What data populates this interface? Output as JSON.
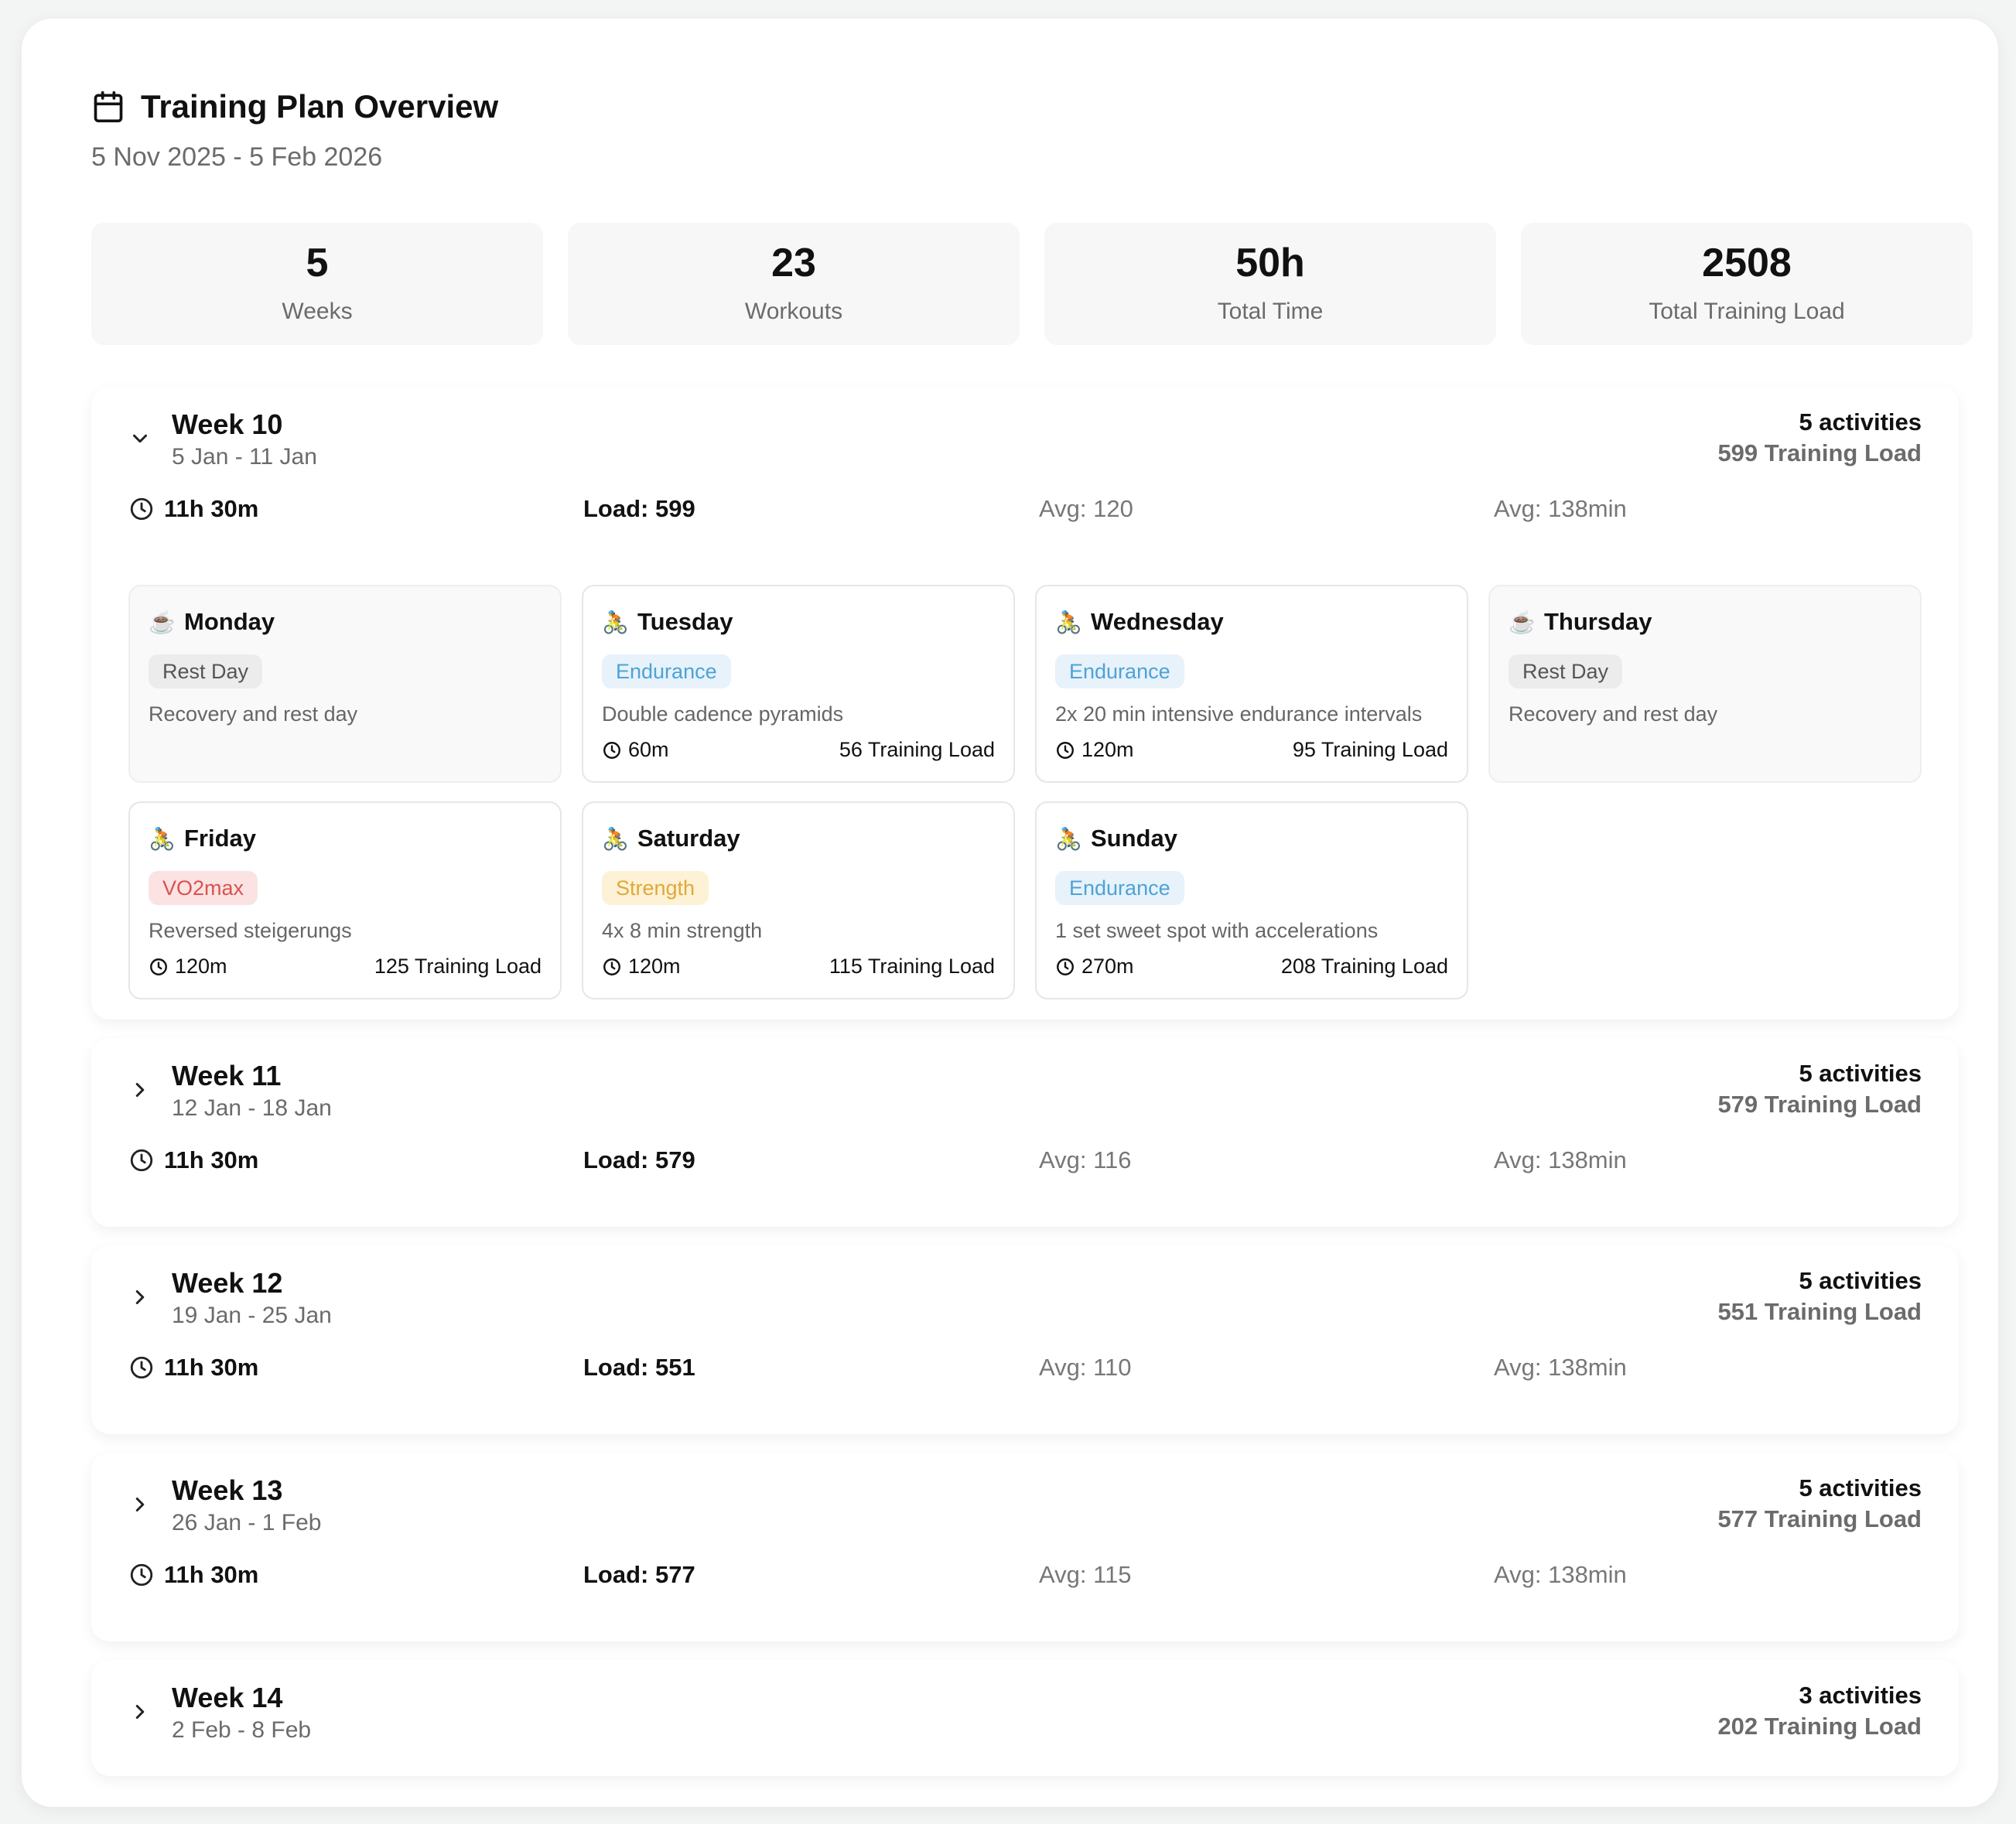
{
  "header": {
    "title": "Training Plan Overview",
    "date_range": "5 Nov 2025 - 5 Feb 2026"
  },
  "stats": [
    {
      "value": "5",
      "label": "Weeks"
    },
    {
      "value": "23",
      "label": "Workouts"
    },
    {
      "value": "50h",
      "label": "Total Time"
    },
    {
      "value": "2508",
      "label": "Total Training Load"
    }
  ],
  "weeks": [
    {
      "title": "Week 10",
      "dates": "5 Jan - 11 Jan",
      "expanded": true,
      "activities": "5 activities",
      "load_summary": "599 Training Load",
      "time": "11h 30m",
      "load": "Load: 599",
      "avg_load": "Avg: 120",
      "avg_time": "Avg: 138min",
      "days": [
        {
          "name": "Monday",
          "icon": "coffee-icon",
          "tag": "Rest Day",
          "desc": "Recovery and rest day"
        },
        {
          "name": "Tuesday",
          "icon": "bike-icon",
          "tag": "Endurance",
          "desc": "Double cadence pyramids",
          "duration": "60m",
          "load": "56 Training Load"
        },
        {
          "name": "Wednesday",
          "icon": "bike-icon",
          "tag": "Endurance",
          "desc": "2x 20 min intensive endurance intervals",
          "duration": "120m",
          "load": "95 Training Load"
        },
        {
          "name": "Thursday",
          "icon": "coffee-icon",
          "tag": "Rest Day",
          "desc": "Recovery and rest day"
        },
        {
          "name": "Friday",
          "icon": "bike-icon",
          "tag": "VO2max",
          "desc": "Reversed steigerungs",
          "duration": "120m",
          "load": "125 Training Load"
        },
        {
          "name": "Saturday",
          "icon": "bike-icon",
          "tag": "Strength",
          "desc": "4x 8 min strength",
          "duration": "120m",
          "load": "115 Training Load"
        },
        {
          "name": "Sunday",
          "icon": "bike-icon",
          "tag": "Endurance",
          "desc": "1 set sweet spot with accelerations",
          "duration": "270m",
          "load": "208 Training Load"
        }
      ]
    },
    {
      "title": "Week 11",
      "dates": "12 Jan - 18 Jan",
      "expanded": false,
      "activities": "5 activities",
      "load_summary": "579 Training Load",
      "time": "11h 30m",
      "load": "Load: 579",
      "avg_load": "Avg: 116",
      "avg_time": "Avg: 138min"
    },
    {
      "title": "Week 12",
      "dates": "19 Jan - 25 Jan",
      "expanded": false,
      "activities": "5 activities",
      "load_summary": "551 Training Load",
      "time": "11h 30m",
      "load": "Load: 551",
      "avg_load": "Avg: 110",
      "avg_time": "Avg: 138min"
    },
    {
      "title": "Week 13",
      "dates": "26 Jan - 1 Feb",
      "expanded": false,
      "activities": "5 activities",
      "load_summary": "577 Training Load",
      "time": "11h 30m",
      "load": "Load: 577",
      "avg_load": "Avg: 115",
      "avg_time": "Avg: 138min"
    },
    {
      "title": "Week 14",
      "dates": "2 Feb - 8 Feb",
      "expanded": false,
      "activities": "3 activities",
      "load_summary": "202 Training Load"
    }
  ],
  "colors": {
    "endurance": "#4ea2d6",
    "vo2max": "#d9534f",
    "strength": "#e0a83a",
    "rest": "#555555"
  }
}
